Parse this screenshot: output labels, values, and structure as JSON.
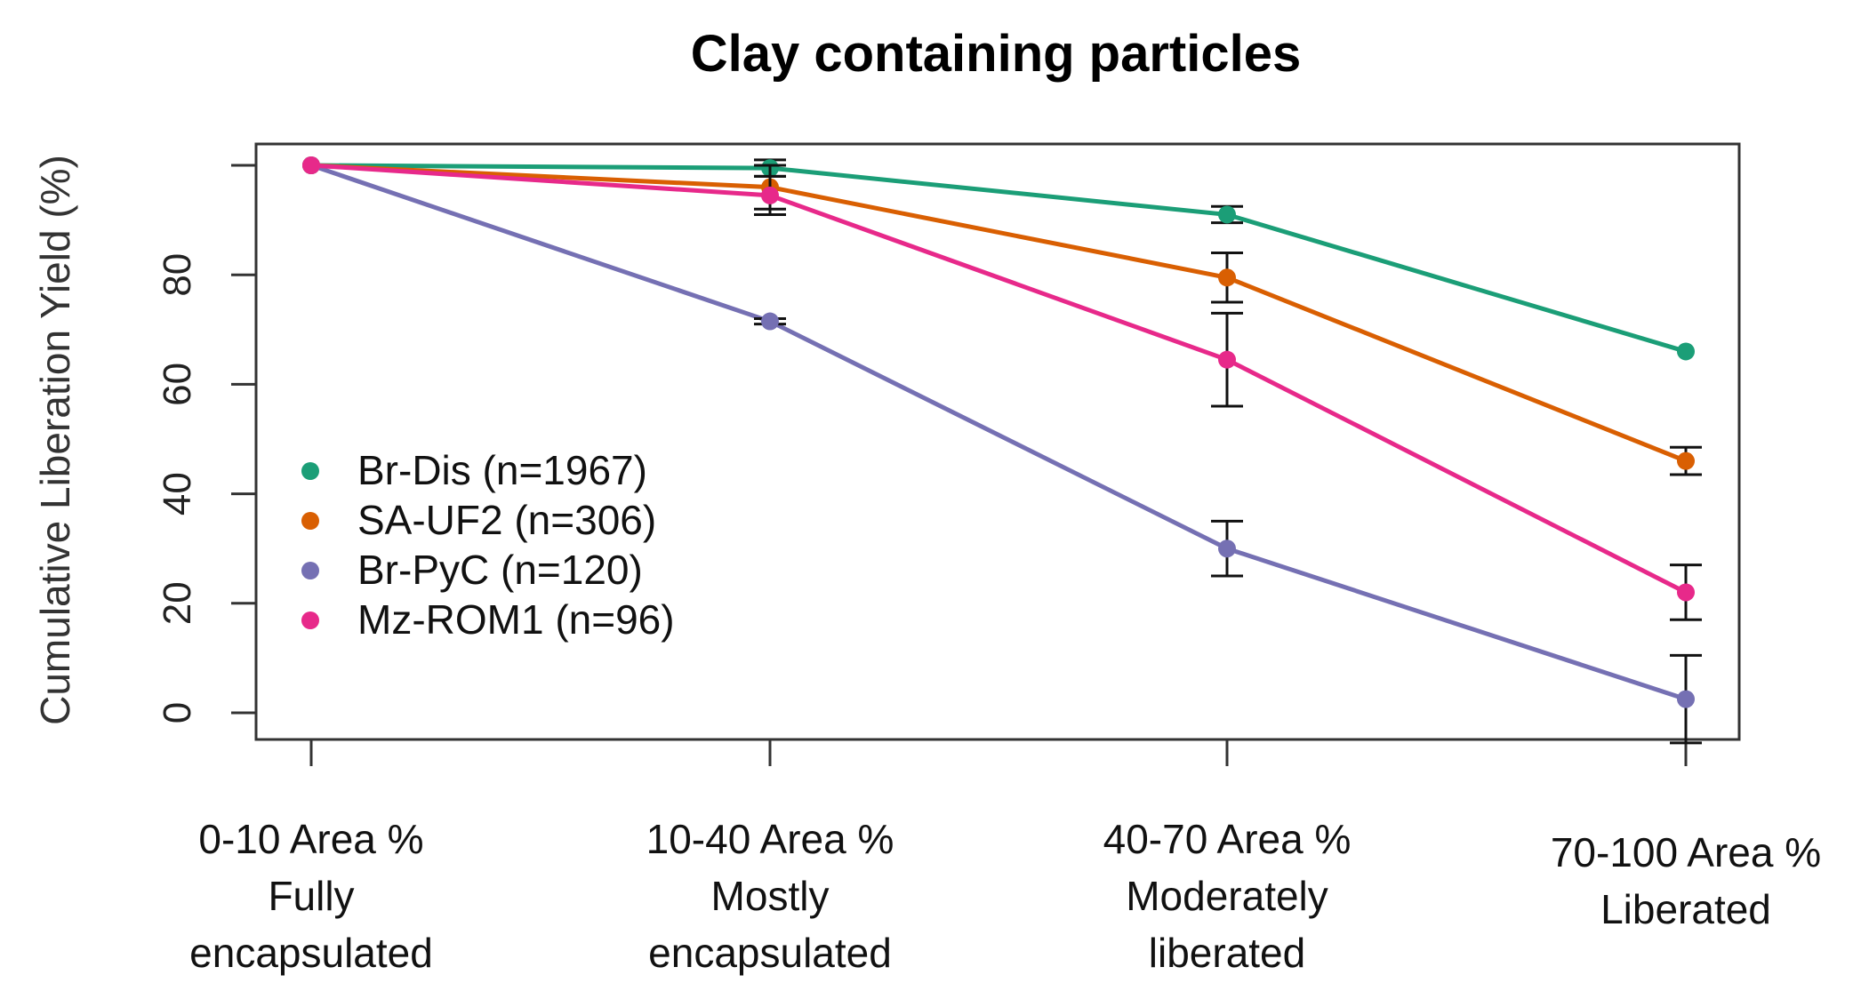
{
  "chart_data": {
    "type": "line",
    "title": "Clay containing particles",
    "ylabel": "Cumulative Liberation Yield (%)",
    "xlabel": "",
    "ylim": [
      -5,
      105
    ],
    "yticks": [
      0,
      20,
      40,
      60,
      80
    ],
    "categories": [
      [
        "0-10 Area %",
        "Fully",
        "encapsulated"
      ],
      [
        "10-40 Area %",
        "Mostly",
        "encapsulated"
      ],
      [
        "40-70 Area %",
        "Moderately",
        "liberated"
      ],
      [
        "70-100 Area %",
        "Liberated"
      ]
    ],
    "series": [
      {
        "name": "Br-Dis (n=1967)",
        "color": "#1b9e77",
        "values": [
          100,
          99.5,
          91,
          66
        ],
        "errors": [
          0,
          1.5,
          1.5,
          0
        ]
      },
      {
        "name": "SA-UF2 (n=306)",
        "color": "#d95f02",
        "values": [
          100,
          96,
          79.5,
          46
        ],
        "errors": [
          0,
          4,
          4.5,
          2.5
        ]
      },
      {
        "name": "Br-PyC (n=120)",
        "color": "#7570b3",
        "values": [
          100,
          71.5,
          30,
          2.5
        ],
        "errors": [
          0,
          0.5,
          5,
          8
        ]
      },
      {
        "name": "Mz-ROM1 (n=96)",
        "color": "#e7298a",
        "values": [
          100,
          94.5,
          64.5,
          22
        ],
        "errors": [
          0,
          3.5,
          8.5,
          5
        ]
      }
    ],
    "legend": "bottom-left",
    "grid": false
  }
}
